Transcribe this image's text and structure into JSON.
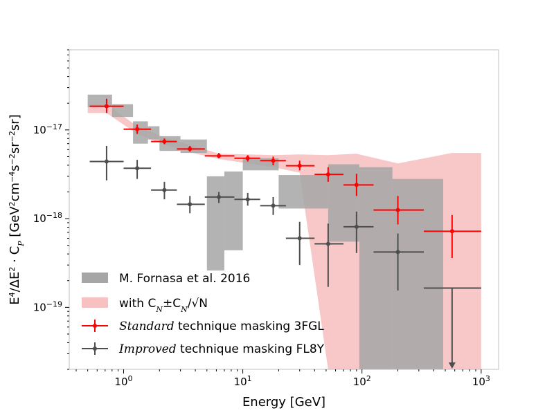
{
  "chart_data": {
    "type": "scatter",
    "xlabel": "Energy [GeV]",
    "ylabel": "E⁴/ΔE² · C_P [GeV²cm⁻⁴s⁻²sr⁻²sr]",
    "xscale": "log",
    "yscale": "log",
    "xlim": [
      0.35,
      1400
    ],
    "ylim": [
      2e-20,
      8e-17
    ],
    "x_ticks": [
      {
        "value": 1,
        "base": "10",
        "exp": "0"
      },
      {
        "value": 10,
        "base": "10",
        "exp": "1"
      },
      {
        "value": 100,
        "base": "10",
        "exp": "2"
      },
      {
        "value": 1000,
        "base": "10",
        "exp": "3"
      }
    ],
    "y_ticks": [
      {
        "value": 1e-19,
        "base": "10",
        "exp": "−19"
      },
      {
        "value": 1e-18,
        "base": "10",
        "exp": "−18"
      },
      {
        "value": 1e-17,
        "base": "10",
        "exp": "−17"
      }
    ],
    "grid": false,
    "legend_position": "lower-left",
    "colors": {
      "standard": "#ff0000",
      "improved": "#4d4d4d",
      "fornasa": "#a6a6a6",
      "band": "#f4a6a6"
    },
    "fornasa_boxes": [
      {
        "x0": 0.5,
        "x1": 0.8,
        "y0": 1.8e-17,
        "y1": 2.5e-17
      },
      {
        "x0": 0.8,
        "x1": 1.2,
        "y0": 1.4e-17,
        "y1": 1.95e-17
      },
      {
        "x0": 1.2,
        "x1": 1.6,
        "y0": 7e-18,
        "y1": 1.25e-17
      },
      {
        "x0": 1.6,
        "x1": 2.0,
        "y0": 7.8e-18,
        "y1": 1.1e-17
      },
      {
        "x0": 2.0,
        "x1": 3.0,
        "y0": 5.8e-18,
        "y1": 8.5e-18
      },
      {
        "x0": 3.0,
        "x1": 5.0,
        "y0": 5.5e-18,
        "y1": 7.8e-18
      },
      {
        "x0": 5.0,
        "x1": 7.0,
        "y0": 2.6e-19,
        "y1": 3e-18
      },
      {
        "x0": 7.0,
        "x1": 10.0,
        "y0": 4.4e-19,
        "y1": 3.4e-18
      },
      {
        "x0": 10.0,
        "x1": 20.0,
        "y0": 3.5e-18,
        "y1": 4.8e-18
      },
      {
        "x0": 20.0,
        "x1": 52.0,
        "y0": 1.3e-18,
        "y1": 3.1e-18
      },
      {
        "x0": 52.0,
        "x1": 95.0,
        "y0": 5.5e-19,
        "y1": 4.1e-18
      },
      {
        "x0": 95.0,
        "x1": 180.0,
        "y0": 2e-20,
        "y1": 3.8e-18
      },
      {
        "x0": 180.0,
        "x1": 480.0,
        "y0": 2e-20,
        "y1": 2.8e-18
      }
    ],
    "cn_band": {
      "x": [
        0.5,
        0.72,
        1.3,
        2.2,
        3.6,
        6.3,
        11,
        18,
        30,
        52,
        90,
        200,
        570,
        1000
      ],
      "upper": [
        1.95e-17,
        1.95e-17,
        1.1e-17,
        8.2e-18,
        6.8e-18,
        5.4e-18,
        5.3e-18,
        5.2e-18,
        5.3e-18,
        5.2e-18,
        5.4e-18,
        4.2e-18,
        5.5e-18,
        5.5e-18
      ],
      "lower": [
        1.55e-17,
        1.55e-17,
        9e-18,
        6.8e-18,
        5.6e-18,
        4.7e-18,
        4.2e-18,
        3.8e-18,
        3.3e-18,
        2e-20,
        2e-20,
        2e-20,
        2e-20,
        2e-20
      ]
    },
    "series": [
      {
        "name": "Standard technique masking 3FGL",
        "color": "#ff0000",
        "points": [
          {
            "x": 0.72,
            "y": 1.85e-17,
            "xlo": 0.52,
            "xhi": 1.0,
            "ylo": 1.55e-17,
            "yhi": 2.25e-17
          },
          {
            "x": 1.3,
            "y": 1.02e-17,
            "xlo": 1.0,
            "xhi": 1.7,
            "ylo": 9e-18,
            "yhi": 1.15e-17
          },
          {
            "x": 2.2,
            "y": 7.4e-18,
            "xlo": 1.7,
            "xhi": 2.8,
            "ylo": 6.9e-18,
            "yhi": 8e-18
          },
          {
            "x": 3.6,
            "y": 6.1e-18,
            "xlo": 2.8,
            "xhi": 4.8,
            "ylo": 5.7e-18,
            "yhi": 6.6e-18
          },
          {
            "x": 6.3,
            "y": 5.1e-18,
            "xlo": 4.8,
            "xhi": 8.5,
            "ylo": 4.8e-18,
            "yhi": 5.5e-18
          },
          {
            "x": 11,
            "y": 4.8e-18,
            "xlo": 8.5,
            "xhi": 14,
            "ylo": 4.4e-18,
            "yhi": 5.2e-18
          },
          {
            "x": 18,
            "y": 4.5e-18,
            "xlo": 14,
            "xhi": 23,
            "ylo": 4e-18,
            "yhi": 5e-18
          },
          {
            "x": 30,
            "y": 3.95e-18,
            "xlo": 23,
            "xhi": 40,
            "ylo": 3.5e-18,
            "yhi": 4.5e-18
          },
          {
            "x": 52,
            "y": 3.15e-18,
            "xlo": 40,
            "xhi": 70,
            "ylo": 2.6e-18,
            "yhi": 3.8e-18
          },
          {
            "x": 90,
            "y": 2.4e-18,
            "xlo": 70,
            "xhi": 125,
            "ylo": 1.8e-18,
            "yhi": 3.2e-18
          },
          {
            "x": 200,
            "y": 1.25e-18,
            "xlo": 125,
            "xhi": 330,
            "ylo": 8.6e-19,
            "yhi": 1.8e-18
          },
          {
            "x": 570,
            "y": 7.2e-19,
            "xlo": 330,
            "xhi": 1000,
            "ylo": 3.6e-19,
            "yhi": 1.1e-18
          }
        ]
      },
      {
        "name": "Improved technique masking FL8Y",
        "color": "#4d4d4d",
        "points": [
          {
            "x": 0.72,
            "y": 4.4e-18,
            "xlo": 0.52,
            "xhi": 1.0,
            "ylo": 2.7e-18,
            "yhi": 6.6e-18
          },
          {
            "x": 1.3,
            "y": 3.7e-18,
            "xlo": 1.0,
            "xhi": 1.7,
            "ylo": 2.8e-18,
            "yhi": 4.6e-18
          },
          {
            "x": 2.2,
            "y": 2.1e-18,
            "xlo": 1.7,
            "xhi": 2.8,
            "ylo": 1.65e-18,
            "yhi": 2.6e-18
          },
          {
            "x": 3.6,
            "y": 1.45e-18,
            "xlo": 2.8,
            "xhi": 4.8,
            "ylo": 1.15e-18,
            "yhi": 1.8e-18
          },
          {
            "x": 6.3,
            "y": 1.75e-18,
            "xlo": 4.8,
            "xhi": 8.5,
            "ylo": 1.5e-18,
            "yhi": 2e-18
          },
          {
            "x": 11,
            "y": 1.65e-18,
            "xlo": 8.5,
            "xhi": 14,
            "ylo": 1.4e-18,
            "yhi": 1.95e-18
          },
          {
            "x": 18,
            "y": 1.4e-18,
            "xlo": 14,
            "xhi": 23,
            "ylo": 1.1e-18,
            "yhi": 1.75e-18
          },
          {
            "x": 30,
            "y": 6e-19,
            "xlo": 23,
            "xhi": 40,
            "ylo": 3e-19,
            "yhi": 9.2e-19
          },
          {
            "x": 52,
            "y": 5.2e-19,
            "xlo": 40,
            "xhi": 70,
            "ylo": 1.7e-19,
            "yhi": 8.8e-19
          },
          {
            "x": 90,
            "y": 8.1e-19,
            "xlo": 70,
            "xhi": 125,
            "ylo": 4.1e-19,
            "yhi": 1.2e-18
          },
          {
            "x": 200,
            "y": 4.2e-19,
            "xlo": 125,
            "xhi": 330,
            "ylo": 1.55e-19,
            "yhi": 6.8e-19
          },
          {
            "x": 570,
            "y": 1.65e-19,
            "xlo": 330,
            "xhi": 1000,
            "upper_limit": true
          }
        ]
      }
    ],
    "legend": [
      {
        "kind": "box",
        "color": "#a6a6a6",
        "label": "M. Fornasa et al. 2016"
      },
      {
        "kind": "band",
        "color": "#f4a6a6",
        "label_pre": "with C",
        "sub1": "N",
        "label_mid": "±C",
        "sub2": "N",
        "label_post": "/√N"
      },
      {
        "kind": "errorbar",
        "color": "#ff0000",
        "italic": "Standard",
        "label": " technique masking 3FGL"
      },
      {
        "kind": "errorbar",
        "color": "#4d4d4d",
        "italic": "Improved",
        "label": " technique masking FL8Y"
      }
    ]
  }
}
